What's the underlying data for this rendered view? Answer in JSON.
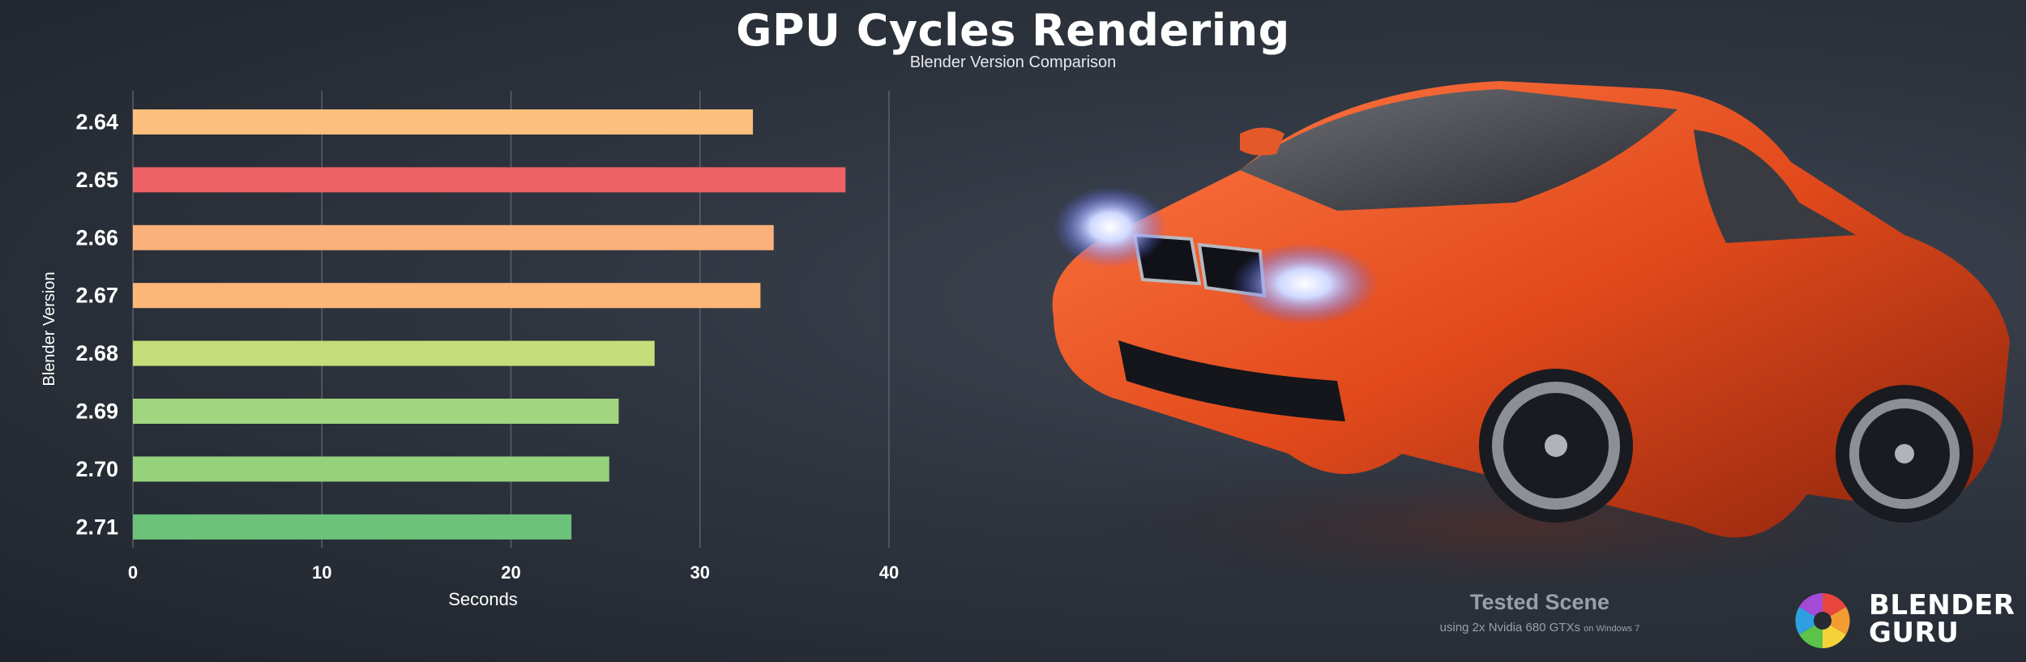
{
  "header": {
    "title": "GPU Cycles Rendering",
    "subtitle": "Blender Version Comparison"
  },
  "chart_data": {
    "type": "bar",
    "orientation": "horizontal",
    "title": "GPU Cycles Rendering",
    "subtitle": "Blender Version Comparison",
    "xlabel": "Seconds",
    "ylabel": "Blender Version",
    "categories": [
      "2.64",
      "2.65",
      "2.66",
      "2.67",
      "2.68",
      "2.69",
      "2.70",
      "2.71"
    ],
    "values": [
      32.8,
      37.7,
      33.9,
      33.2,
      27.6,
      25.7,
      25.2,
      23.2
    ],
    "colors": [
      "#fdbf7c",
      "#ee6266",
      "#fcb17a",
      "#fcb677",
      "#c7dc7a",
      "#a2d57f",
      "#96d17b",
      "#6cc279"
    ],
    "xlim": [
      0,
      40
    ],
    "xticks": [
      0,
      10,
      20,
      30,
      40
    ],
    "grid": "vertical",
    "legend": "none"
  },
  "footer": {
    "tested_scene": "Tested Scene",
    "hardware": "using 2x Nvidia 680 GTXs",
    "os": "on Windows 7"
  },
  "brand": {
    "line1": "BLENDER",
    "line2": "GURU"
  }
}
